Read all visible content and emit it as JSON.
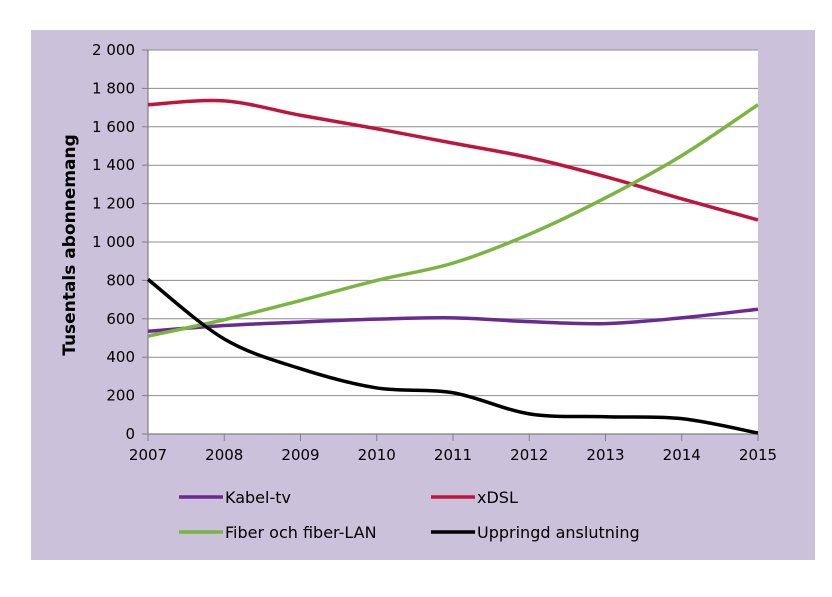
{
  "chart_data": {
    "type": "line",
    "title": "",
    "xlabel": "",
    "ylabel": "Tusentals abonnemang",
    "x": [
      "2007",
      "2008",
      "2009",
      "2010",
      "2011",
      "2012",
      "2013",
      "2014",
      "2015"
    ],
    "ylim": [
      0,
      2000
    ],
    "yticks": [
      0,
      200,
      400,
      600,
      800,
      1000,
      1200,
      1400,
      1600,
      1800,
      2000
    ],
    "ytick_labels": [
      "0",
      "200",
      "400",
      "600",
      "800",
      "1 000",
      "1 200",
      "1 400",
      "1 600",
      "1 800",
      "2 000"
    ],
    "grid": "horizontal",
    "legend_position": "bottom",
    "background": "#ccc1da",
    "series": [
      {
        "name": "Kabel-tv",
        "color": "#6a2a91",
        "values": [
          535,
          565,
          583,
          598,
          605,
          585,
          575,
          605,
          650
        ]
      },
      {
        "name": "xDSL",
        "color": "#c0143c",
        "values": [
          1715,
          1735,
          1660,
          1590,
          1515,
          1440,
          1340,
          1225,
          1115
        ]
      },
      {
        "name": "Fiber och fiber-LAN",
        "color": "#7ab441",
        "values": [
          510,
          595,
          695,
          800,
          890,
          1040,
          1230,
          1450,
          1715
        ]
      },
      {
        "name": "Uppringd anslutning",
        "color": "#000000",
        "values": [
          805,
          495,
          340,
          240,
          215,
          105,
          90,
          80,
          5
        ]
      }
    ]
  }
}
